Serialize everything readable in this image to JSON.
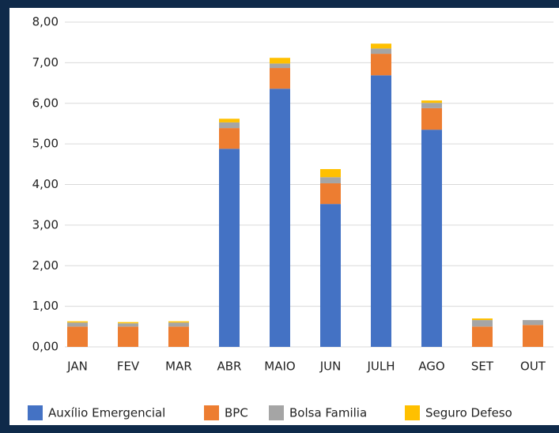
{
  "chart_data": {
    "type": "stacked_bar",
    "categories": [
      "JAN",
      "FEV",
      "MAR",
      "ABR",
      "MAIO",
      "JUN",
      "JULH",
      "AGO",
      "SET",
      "OUT"
    ],
    "series": [
      {
        "name": "Auxílio Emergencial",
        "color": "#4472c4",
        "values": [
          0,
          0,
          0,
          4.88,
          6.36,
          3.52,
          6.69,
          5.35,
          0,
          0
        ]
      },
      {
        "name": "BPC",
        "color": "#ed7d31",
        "values": [
          0.5,
          0.5,
          0.5,
          0.51,
          0.51,
          0.51,
          0.53,
          0.53,
          0.5,
          0.54
        ]
      },
      {
        "name": "Bolsa Familia",
        "color": "#a5a5a5",
        "values": [
          0.1,
          0.08,
          0.1,
          0.14,
          0.11,
          0.15,
          0.13,
          0.13,
          0.16,
          0.12
        ]
      },
      {
        "name": "Seguro Defeso",
        "color": "#ffc000",
        "values": [
          0.03,
          0.03,
          0.03,
          0.09,
          0.14,
          0.2,
          0.12,
          0.06,
          0.04,
          0
        ]
      }
    ],
    "ylim": [
      0,
      8
    ],
    "yticks": [
      {
        "value": 0,
        "label": "0,00"
      },
      {
        "value": 1,
        "label": "1,00"
      },
      {
        "value": 2,
        "label": "2,00"
      },
      {
        "value": 3,
        "label": "3,00"
      },
      {
        "value": 4,
        "label": "4,00"
      },
      {
        "value": 5,
        "label": "5,00"
      },
      {
        "value": 6,
        "label": "6,00"
      },
      {
        "value": 7,
        "label": "7,00"
      },
      {
        "value": 8,
        "label": "8,00"
      }
    ],
    "grid": true,
    "legend": "bottom"
  }
}
